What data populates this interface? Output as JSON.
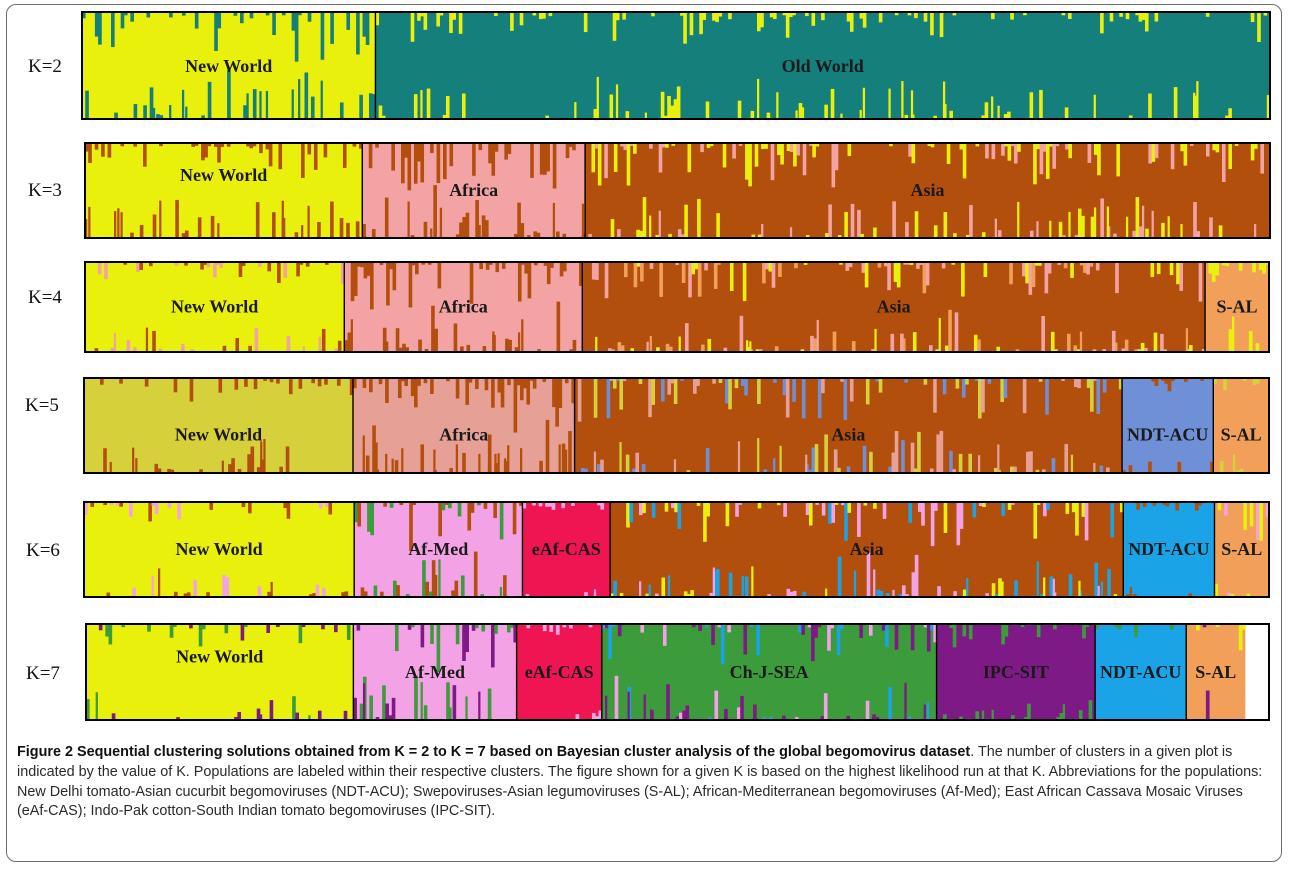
{
  "figure": {
    "colors": {
      "yellow": "#e9f00c",
      "teal": "#157f7b",
      "salmon": "#f3a3a3",
      "rust": "#b34f0d",
      "orange": "#f29f5a",
      "olive": "#d6d03a",
      "dusty_pink": "#e6a095",
      "cornflower": "#6f8fd6",
      "pink": "#f4a2e6",
      "crimson": "#ef1553",
      "sky": "#1aa3e6",
      "green": "#3c9b3a",
      "purple": "#7e1a86"
    },
    "panels": [
      {
        "k_label": "K=2",
        "populations": [
          {
            "name": "New World",
            "color": "#e9f00c",
            "share": 0.247,
            "admix": [
              "#157f7b"
            ],
            "intensity": 0.8,
            "label_pos": "middle"
          },
          {
            "name": "Old World",
            "color": "#157f7b",
            "share": 0.753,
            "admix": [
              "#e9f00c"
            ],
            "intensity": 0.5,
            "label_pos": "middle"
          }
        ]
      },
      {
        "k_label": "K=3",
        "populations": [
          {
            "name": "New World",
            "color": "#e9f00c",
            "share": 0.234,
            "admix": [
              "#b34f0d"
            ],
            "intensity": 0.7,
            "label_pos": "upper"
          },
          {
            "name": "Africa",
            "color": "#f3a3a3",
            "share": 0.188,
            "admix": [
              "#b34f0d"
            ],
            "intensity": 1.0,
            "label_pos": "middle"
          },
          {
            "name": "Asia",
            "color": "#b34f0d",
            "share": 0.578,
            "admix": [
              "#f3a3a3",
              "#e9f00c"
            ],
            "intensity": 0.8,
            "label_pos": "middle"
          }
        ]
      },
      {
        "k_label": "K=4",
        "populations": [
          {
            "name": "New World",
            "color": "#e9f00c",
            "share": 0.219,
            "admix": [
              "#b34f0d",
              "#f3a3a3"
            ],
            "intensity": 0.5,
            "label_pos": "middle"
          },
          {
            "name": "Africa",
            "color": "#f3a3a3",
            "share": 0.201,
            "admix": [
              "#b34f0d"
            ],
            "intensity": 1.0,
            "label_pos": "middle"
          },
          {
            "name": "Asia",
            "color": "#b34f0d",
            "share": 0.526,
            "admix": [
              "#f29f5a",
              "#f3a3a3",
              "#e9f00c"
            ],
            "intensity": 0.8,
            "label_pos": "middle"
          },
          {
            "name": "S-AL",
            "color": "#f29f5a",
            "share": 0.054,
            "admix": [
              "#e9f00c"
            ],
            "intensity": 0.6,
            "label_pos": "middle"
          }
        ]
      },
      {
        "k_label": "K=5",
        "populations": [
          {
            "name": "New World",
            "color": "#d6d03a",
            "share": 0.227,
            "admix": [
              "#b34f0d"
            ],
            "intensity": 0.5,
            "label_pos": "lower"
          },
          {
            "name": "Africa",
            "color": "#e6a095",
            "share": 0.187,
            "admix": [
              "#b34f0d"
            ],
            "intensity": 1.0,
            "label_pos": "lower"
          },
          {
            "name": "Asia",
            "color": "#b34f0d",
            "share": 0.462,
            "admix": [
              "#e6a095",
              "#6f8fd6",
              "#d6d03a"
            ],
            "intensity": 0.8,
            "label_pos": "lower"
          },
          {
            "name": "NDT-ACU",
            "color": "#6f8fd6",
            "share": 0.077,
            "admix": [
              "#b34f0d"
            ],
            "intensity": 0.2,
            "label_pos": "lower"
          },
          {
            "name": "S-AL",
            "color": "#f29f5a",
            "share": 0.047,
            "admix": [
              "#d6d03a"
            ],
            "intensity": 0.6,
            "label_pos": "lower"
          }
        ]
      },
      {
        "k_label": "K=6",
        "populations": [
          {
            "name": "New World",
            "color": "#e9f00c",
            "share": 0.228,
            "admix": [
              "#b34f0d",
              "#f4a2e6"
            ],
            "intensity": 0.4,
            "label_pos": "middle"
          },
          {
            "name": "Af-Med",
            "color": "#f4a2e6",
            "share": 0.142,
            "admix": [
              "#b34f0d",
              "#3c9b3a"
            ],
            "intensity": 0.9,
            "label_pos": "middle"
          },
          {
            "name": "eAf-CAS",
            "color": "#ef1553",
            "share": 0.074,
            "admix": [
              "#f4a2e6"
            ],
            "intensity": 0.4,
            "label_pos": "middle"
          },
          {
            "name": "Asia",
            "color": "#b34f0d",
            "share": 0.433,
            "admix": [
              "#f4a2e6",
              "#1aa3e6",
              "#e9f00c"
            ],
            "intensity": 0.8,
            "label_pos": "middle"
          },
          {
            "name": "NDT-ACU",
            "color": "#1aa3e6",
            "share": 0.077,
            "admix": [
              "#b34f0d"
            ],
            "intensity": 0.3,
            "label_pos": "middle"
          },
          {
            "name": "S-AL",
            "color": "#f29f5a",
            "share": 0.046,
            "admix": [
              "#f4a2e6",
              "#e9f00c"
            ],
            "intensity": 0.7,
            "label_pos": "middle"
          }
        ]
      },
      {
        "k_label": "K=7",
        "populations": [
          {
            "name": "New World",
            "color": "#e9f00c",
            "share": 0.226,
            "admix": [
              "#7e1a86",
              "#3c9b3a"
            ],
            "intensity": 0.4,
            "label_pos": "upper"
          },
          {
            "name": "Af-Med",
            "color": "#f4a2e6",
            "share": 0.138,
            "admix": [
              "#3c9b3a",
              "#7e1a86"
            ],
            "intensity": 0.9,
            "label_pos": "middle"
          },
          {
            "name": "eAf-CAS",
            "color": "#ef1553",
            "share": 0.072,
            "admix": [
              "#f4a2e6"
            ],
            "intensity": 0.4,
            "label_pos": "middle"
          },
          {
            "name": "Ch-J-SEA",
            "color": "#3c9b3a",
            "share": 0.283,
            "admix": [
              "#7e1a86",
              "#f4a2e6",
              "#1aa3e6"
            ],
            "intensity": 0.8,
            "label_pos": "middle"
          },
          {
            "name": "IPC-SIT",
            "color": "#7e1a86",
            "share": 0.134,
            "admix": [
              "#3c9b3a"
            ],
            "intensity": 0.4,
            "label_pos": "middle"
          },
          {
            "name": "NDT-ACU",
            "color": "#1aa3e6",
            "share": 0.077,
            "admix": [
              "#3c9b3a"
            ],
            "intensity": 0.2,
            "label_pos": "middle"
          },
          {
            "name": "S-AL",
            "color": "#f29f5a",
            "share": 0.05,
            "admix": [
              "#7e1a86",
              "#e9f00c"
            ],
            "intensity": 0.6,
            "label_pos": "middle"
          }
        ]
      }
    ]
  },
  "caption": {
    "title": "Figure 2 Sequential clustering solutions obtained from K = 2 to K = 7 based on Bayesian cluster analysis of the global begomovirus dataset",
    "body": ". The number of clusters in a given plot is indicated by the value of K. Populations are labeled within their respective clusters. The figure shown for a given K is based on the highest likelihood run at that K. Abbreviations for the populations: New Delhi tomato-Asian cucurbit begomoviruses (NDT-ACU); Swepoviruses-Asian legumoviruses (S-AL); African-Mediterranean begomoviruses (Af-Med); East African Cassava Mosaic Viruses (eAf-CAS); Indo-Pak cotton-South Indian tomato begomoviruses (IPC-SIT)."
  }
}
